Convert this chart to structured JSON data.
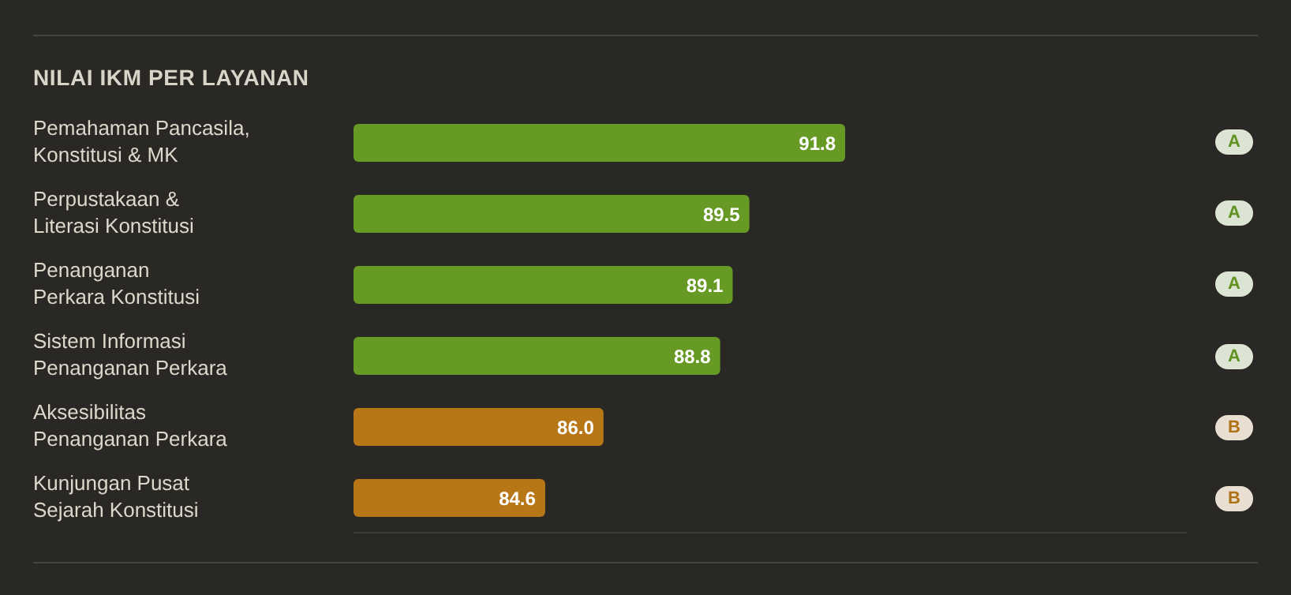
{
  "chart_data": {
    "type": "bar",
    "orientation": "horizontal",
    "title": "NILAI IKM PER LAYANAN",
    "categories": [
      "Pemahaman Pancasila,\nKonstitusi & MK",
      "Perpustakaan &\nLiterasi Konstitusi",
      "Penanganan\nPerkara Konstitusi",
      "Sistem Informasi\nPenanganan Perkara",
      "Aksesibilitas\nPenanganan Perkara",
      "Kunjungan Pusat\nSejarah Konstitusi"
    ],
    "values": [
      91.8,
      89.5,
      89.1,
      88.8,
      86.0,
      84.6
    ],
    "value_labels": [
      "91.8",
      "89.5",
      "89.1",
      "88.8",
      "86.0",
      "84.6"
    ],
    "colors": [
      "#669a24",
      "#669a24",
      "#669a24",
      "#669a24",
      "#b87716",
      "#b87716"
    ],
    "xlim": [
      80,
      100
    ],
    "tick_labels": "y",
    "annotations": [
      "A",
      "A",
      "A",
      "A",
      "B",
      "B"
    ]
  }
}
